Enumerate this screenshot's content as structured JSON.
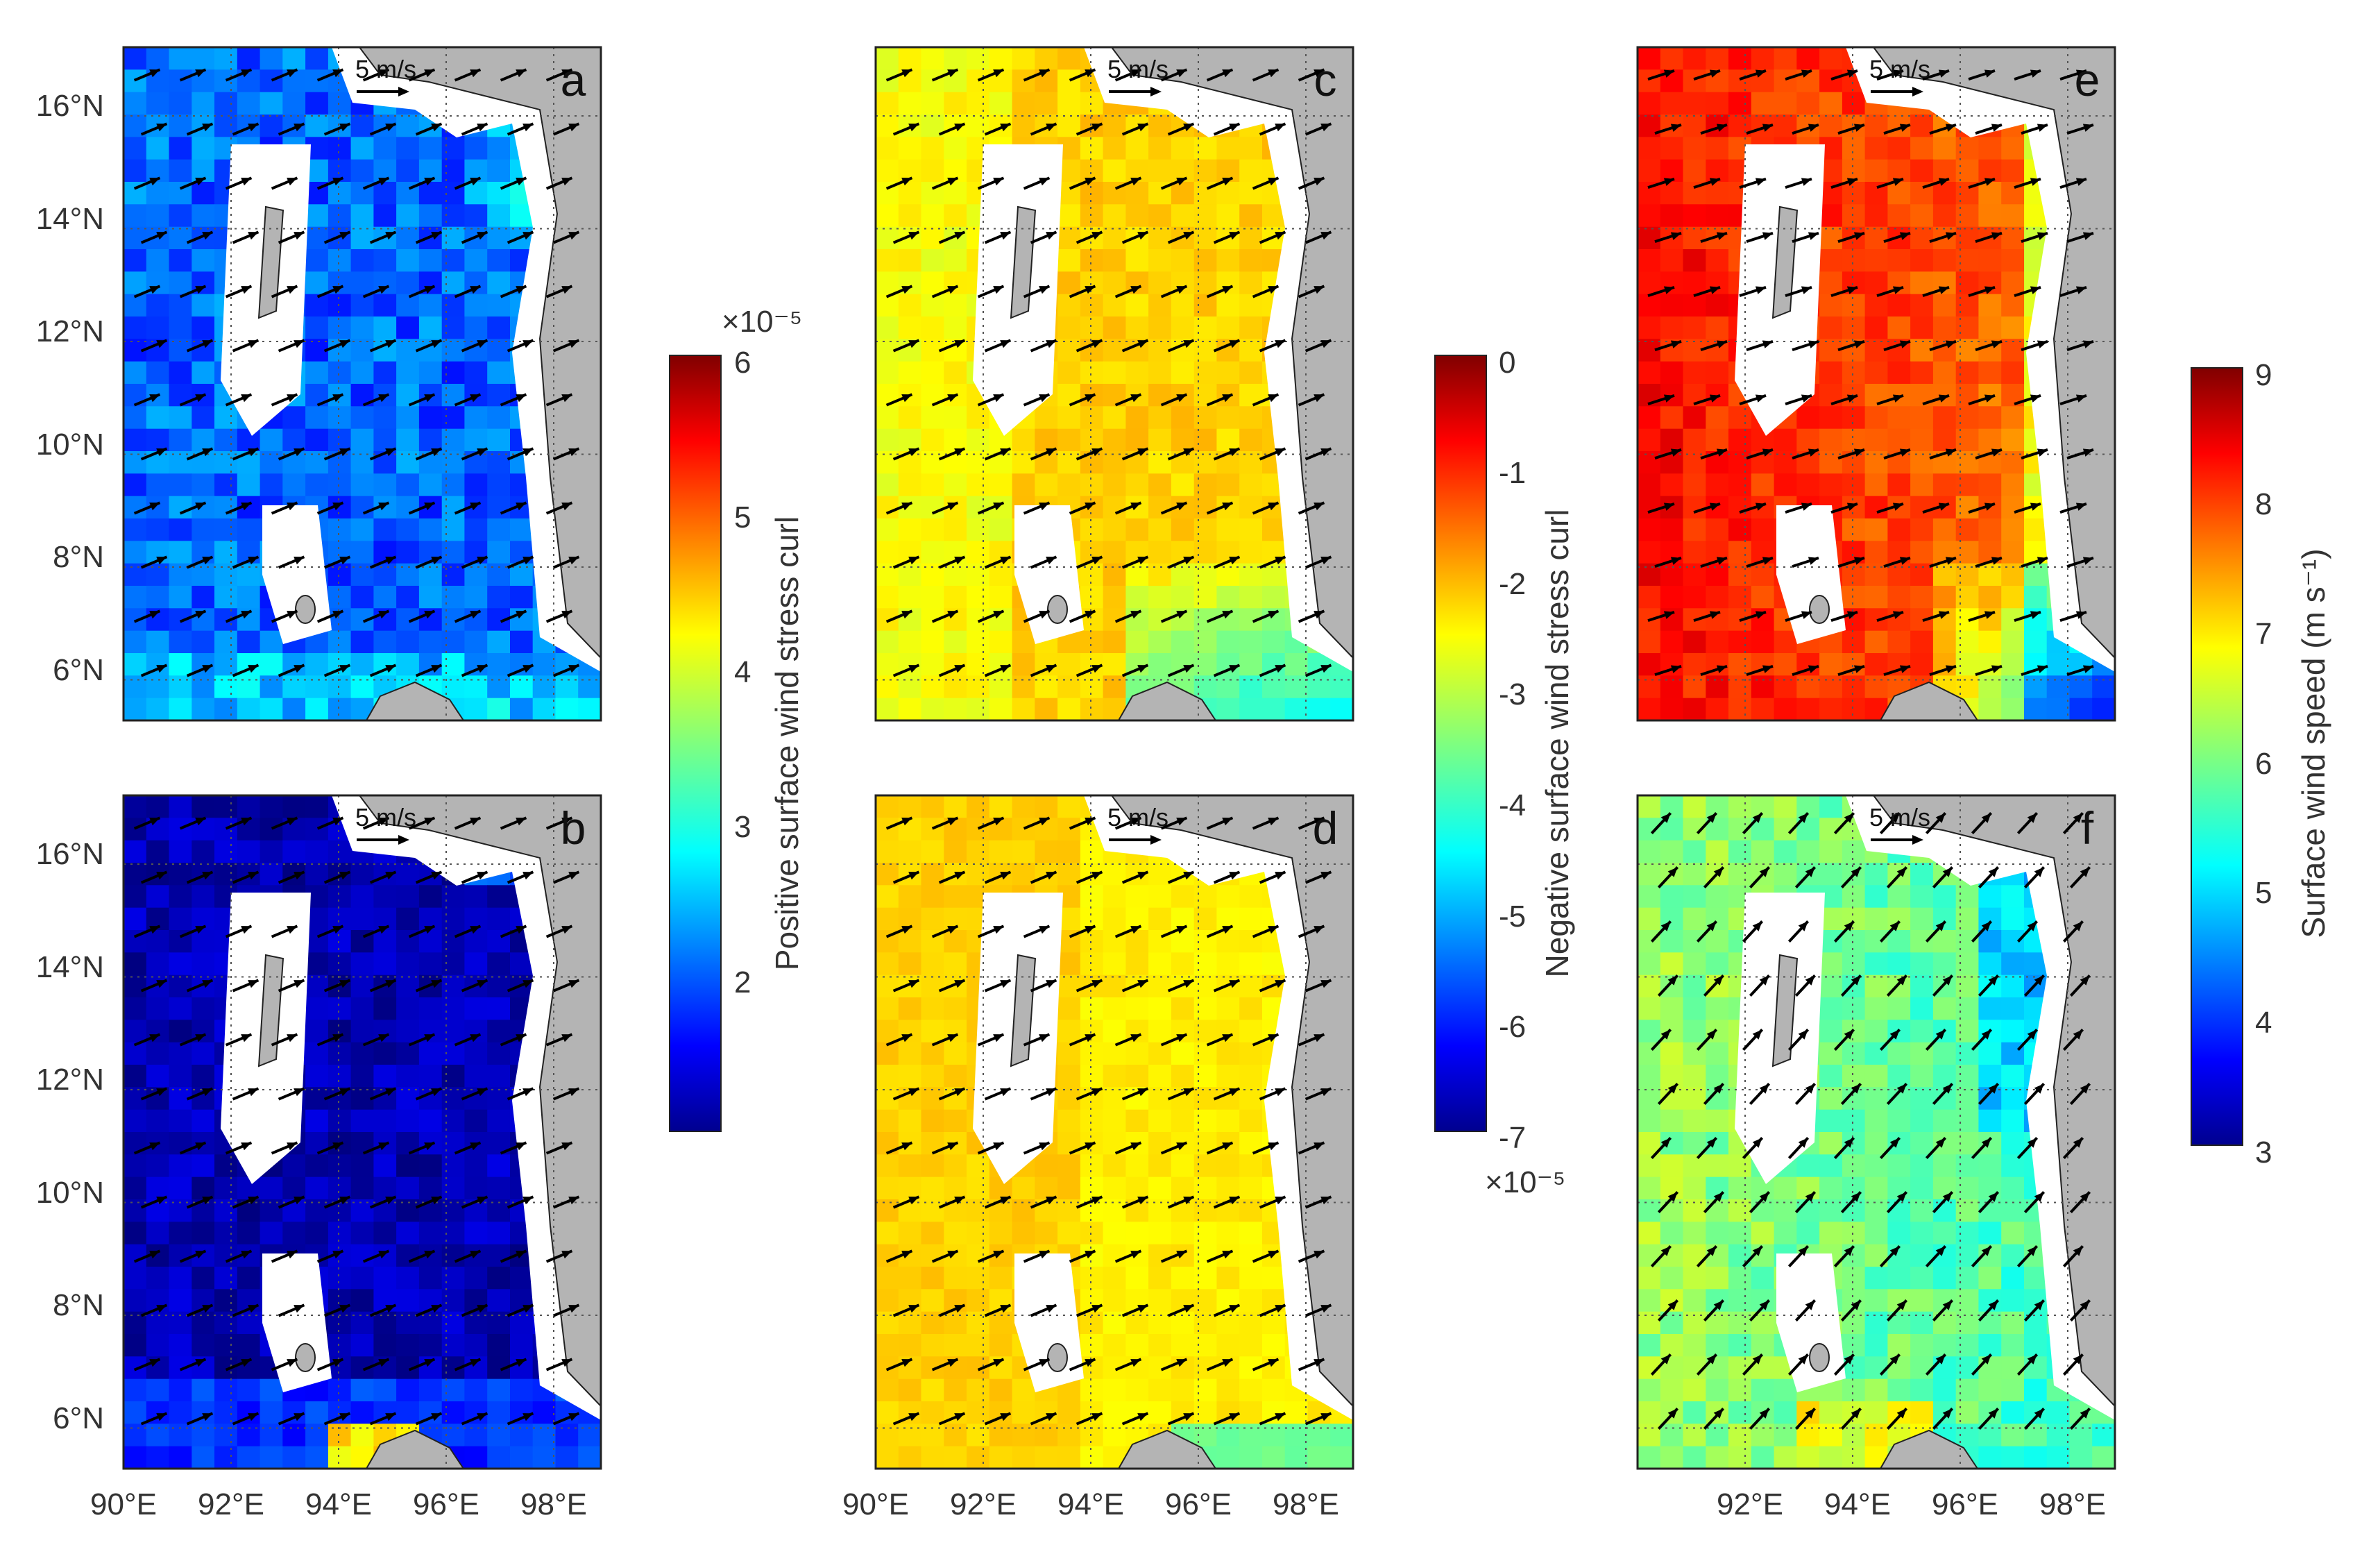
{
  "figure": {
    "panels": [
      {
        "label": "a",
        "row": 0,
        "col": 0,
        "colormap": "A",
        "base": 0.22,
        "variation": 0.08,
        "mode": "a",
        "dir": [
          1.0,
          0.42
        ],
        "lat_ticks": true,
        "lon_ticks": false
      },
      {
        "label": "b",
        "row": 1,
        "col": 0,
        "colormap": "A",
        "base": 0.05,
        "variation": 0.05,
        "mode": "b",
        "dir": [
          1.0,
          0.42
        ],
        "lat_ticks": true,
        "lon_ticks": true
      },
      {
        "label": "c",
        "row": 0,
        "col": 1,
        "colormap": "B",
        "base": 0.62,
        "variation": 0.03,
        "mode": "c",
        "dir": [
          1.0,
          0.42
        ],
        "lat_ticks": false,
        "lon_ticks": false
      },
      {
        "label": "d",
        "row": 1,
        "col": 1,
        "colormap": "B",
        "base": 0.67,
        "variation": 0.02,
        "mode": "d",
        "dir": [
          1.0,
          0.42
        ],
        "lat_ticks": false,
        "lon_ticks": true
      },
      {
        "label": "e",
        "row": 0,
        "col": 2,
        "colormap": "C",
        "base": 0.8,
        "variation": 0.05,
        "mode": "e",
        "dir": [
          1.0,
          0.32
        ],
        "lat_ticks": false,
        "lon_ticks": false
      },
      {
        "label": "f",
        "row": 1,
        "col": 2,
        "colormap": "C",
        "base": 0.48,
        "variation": 0.06,
        "mode": "f",
        "dir": [
          0.7,
          0.75
        ],
        "lat_ticks": false,
        "lon_ticks": true
      }
    ],
    "lat_ticks": [
      "16°N",
      "14°N",
      "12°N",
      "10°N",
      "8°N",
      "6°N"
    ],
    "lon_ticks_full": [
      "90°E",
      "92°E",
      "94°E",
      "96°E",
      "98°E"
    ],
    "lon_ticks_short": [
      "92°E",
      "94°E",
      "96°E",
      "98°E"
    ],
    "scale_label": "5 m/s",
    "colorbars": [
      {
        "id": "A",
        "title": "Positive surface wind stress curl",
        "ticks": [
          "6",
          "5",
          "4",
          "3",
          "2"
        ],
        "exponent": "×10⁻⁵"
      },
      {
        "id": "B",
        "title": "Negative surface wind stress curl",
        "ticks": [
          "0",
          "-1",
          "-2",
          "-3",
          "-4",
          "-5",
          "-6",
          "-7"
        ],
        "exponent": "×10⁻⁵"
      },
      {
        "id": "C",
        "title": "Surface wind speed (m s⁻¹)",
        "ticks": [
          "9",
          "8",
          "7",
          "6",
          "5",
          "4",
          "3"
        ],
        "exponent": ""
      }
    ]
  }
}
